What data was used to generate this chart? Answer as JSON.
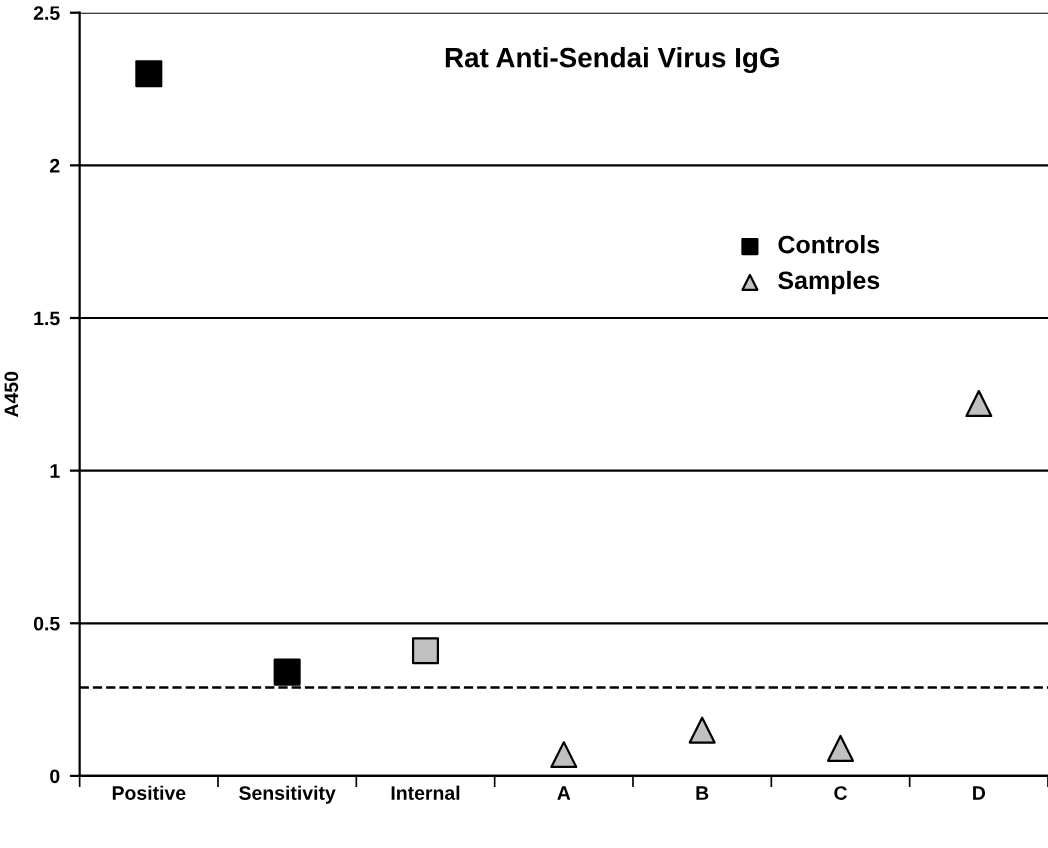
{
  "chart_data": {
    "type": "scatter",
    "title": "Rat Anti-Sendai Virus IgG",
    "ylabel": "A450",
    "categories": [
      "Positive",
      "Sensitivity",
      "Internal",
      "A",
      "B",
      "C",
      "D"
    ],
    "series": [
      {
        "name": "Controls",
        "color": "#000000",
        "marker": "square",
        "values": [
          2.3,
          0.34,
          null,
          null,
          null,
          null,
          null
        ]
      },
      {
        "color": "#c0c0c0",
        "marker": "square",
        "values": [
          null,
          null,
          0.41,
          null,
          null,
          null,
          null
        ]
      },
      {
        "name": "Samples",
        "color": "#c0c0c0",
        "marker": "triangle",
        "values": [
          null,
          null,
          null,
          0.07,
          0.15,
          0.09,
          1.22
        ]
      }
    ],
    "ref_lines": [
      {
        "axis": "y",
        "value": 0.29,
        "color": "#000000",
        "line_style": "dashed"
      }
    ],
    "ylim": [
      0,
      2.5
    ],
    "yticks": [
      0,
      0.5,
      1,
      1.5,
      2,
      2.5
    ],
    "grid": "y",
    "legend": "right"
  }
}
